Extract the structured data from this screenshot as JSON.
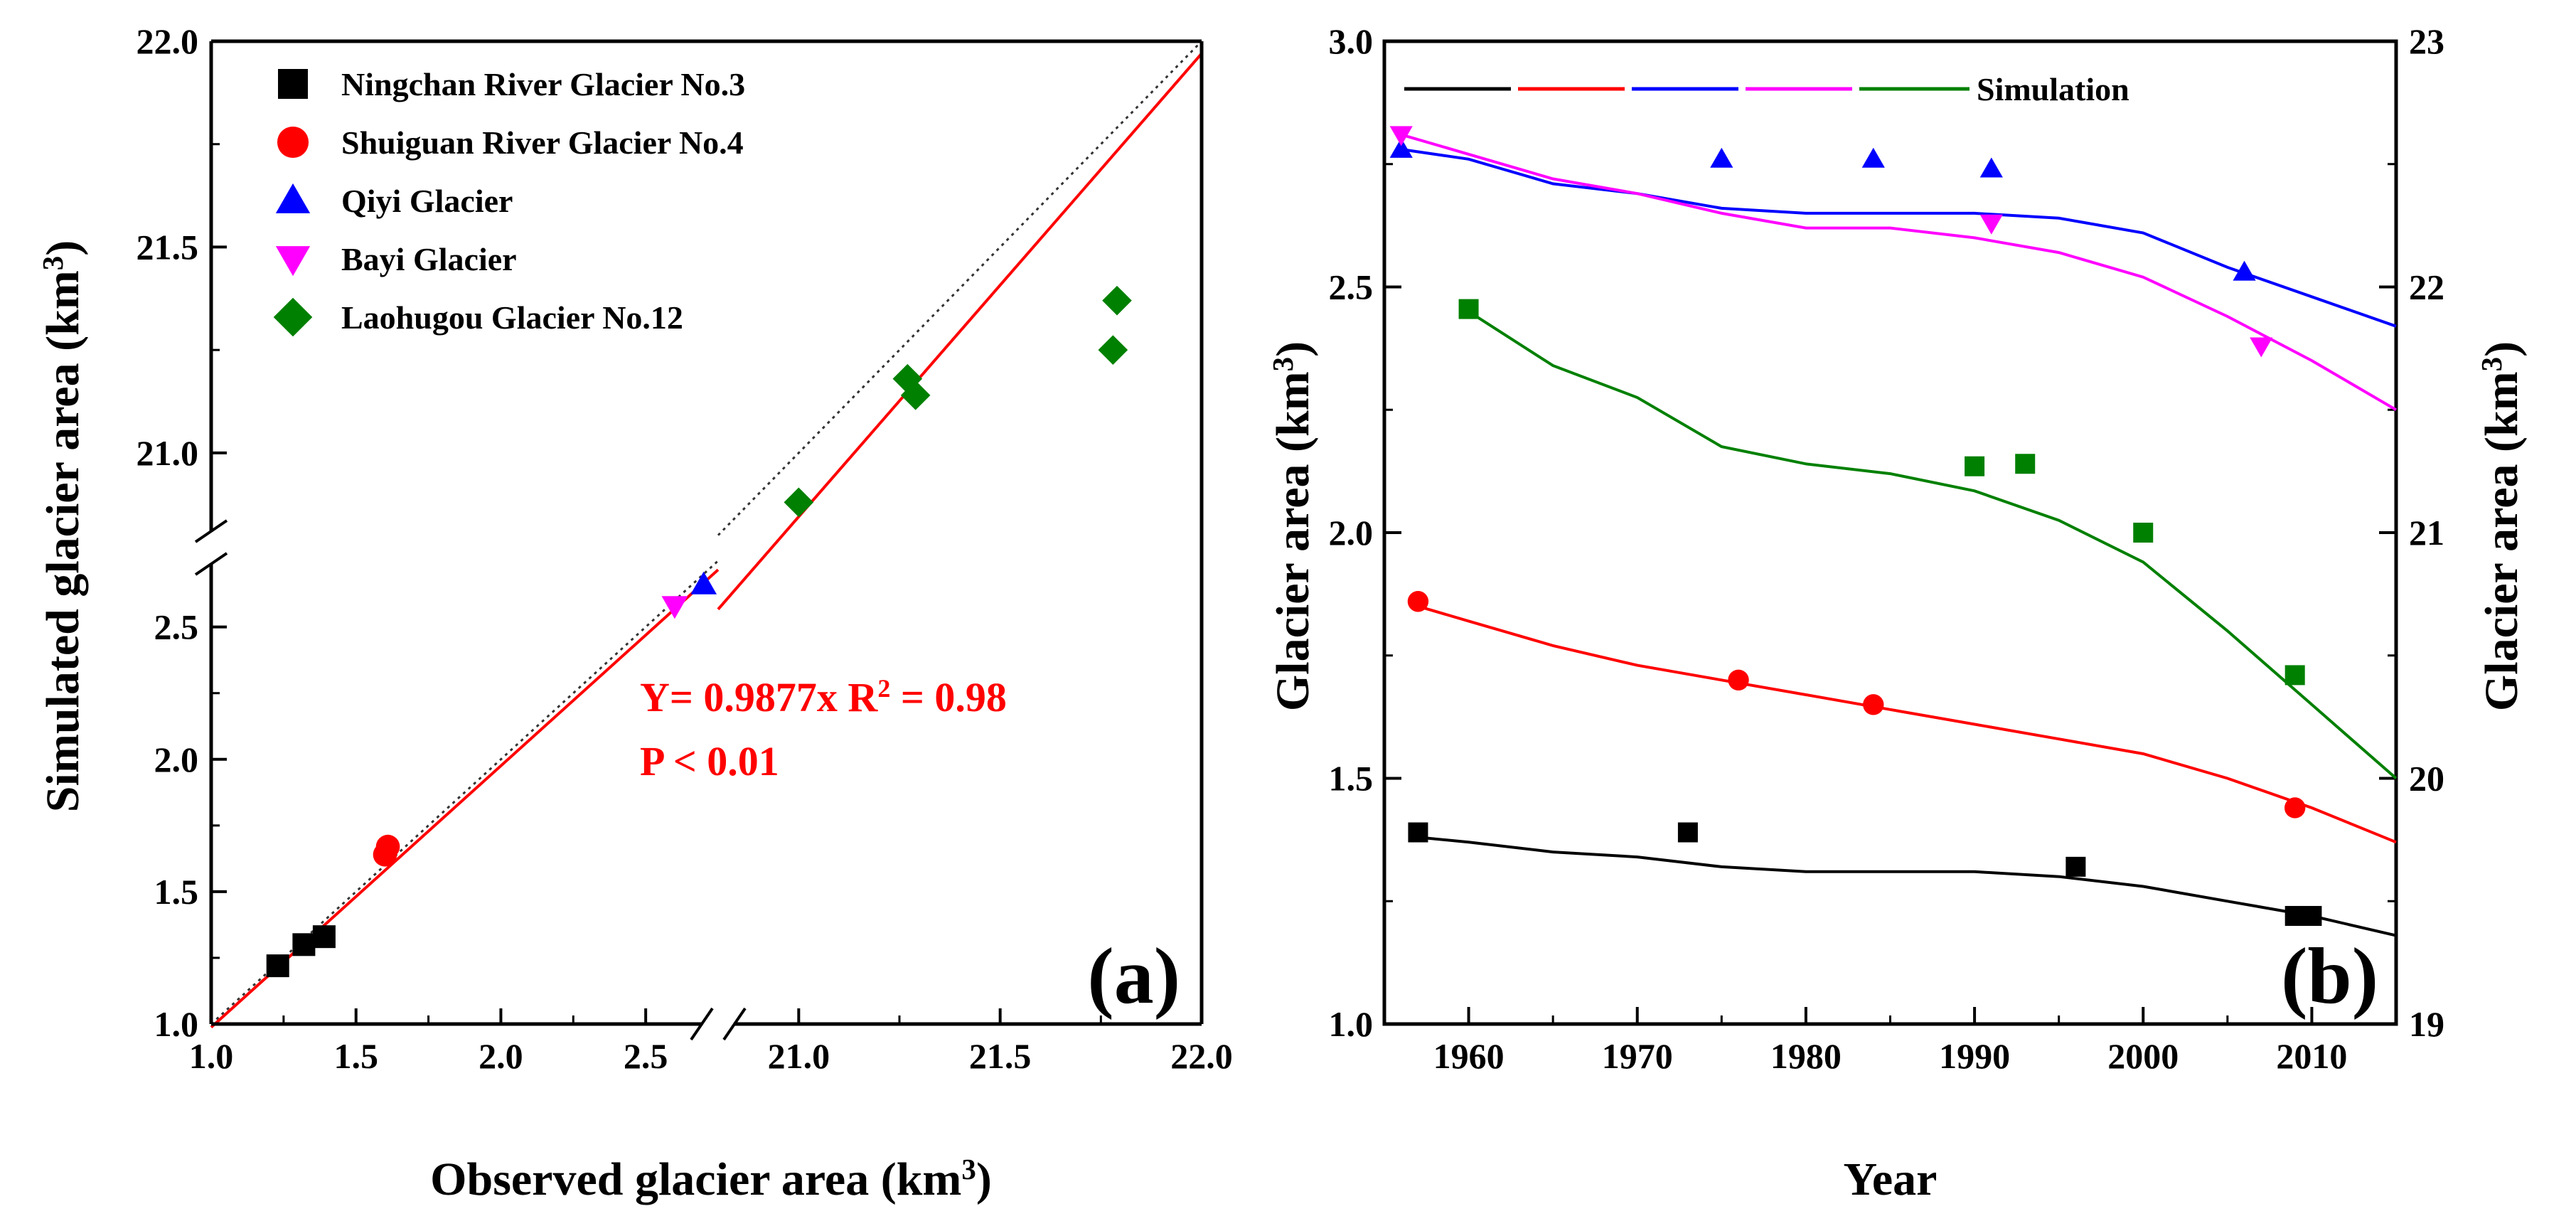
{
  "colors": {
    "ningchan": "#000000",
    "shuiguan": "#ff0000",
    "qiyi": "#0000ff",
    "bayi": "#ff00ff",
    "laohugou": "#008000",
    "identity": "#333333"
  },
  "chart_data": [
    {
      "type": "scatter",
      "panel_label": "(a)",
      "xlabel": "Observed glacier area (km",
      "ylabel": "Simulated glacier area (km",
      "unit_sup": "3",
      "axis_break": true,
      "x_lower_range": [
        1.0,
        2.7
      ],
      "x_upper_range": [
        20.9,
        22.0
      ],
      "y_lower_range": [
        1.0,
        2.75
      ],
      "y_upper_range": [
        20.8,
        22.0
      ],
      "x_ticks": [
        "1.0",
        "1.5",
        "2.0",
        "2.5",
        "21.0",
        "21.5",
        "22.0"
      ],
      "y_ticks": [
        "1.0",
        "1.5",
        "2.0",
        "2.5",
        "21.0",
        "21.5",
        "22.0"
      ],
      "legend": [
        {
          "name": "Ningchan River Glacier No.3",
          "marker": "square",
          "color": "#000000"
        },
        {
          "name": "Shuiguan River Glacier No.4",
          "marker": "circle",
          "color": "#ff0000"
        },
        {
          "name": "Qiyi  Glacier",
          "marker": "triangle-up",
          "color": "#0000ff"
        },
        {
          "name": "Bayi Glacier",
          "marker": "triangle-down",
          "color": "#ff00ff"
        },
        {
          "name": "Laohugou Glacier No.12",
          "marker": "diamond",
          "color": "#008000"
        }
      ],
      "fit_text": "Y= 0.9877x   R",
      "fit_sup": "2",
      "fit_text_tail": " = 0.98",
      "p_text": "P < 0.01",
      "fit_slope": 0.9877,
      "series": [
        {
          "name": "Ningchan River Glacier No.3",
          "points": [
            [
              1.23,
              1.22
            ],
            [
              1.32,
              1.3
            ],
            [
              1.39,
              1.33
            ]
          ]
        },
        {
          "name": "Shuiguan River Glacier No.4",
          "points": [
            [
              1.6,
              1.64
            ],
            [
              1.61,
              1.67
            ]
          ]
        },
        {
          "name": "Qiyi  Glacier",
          "points": [
            [
              2.7,
              2.66
            ]
          ]
        },
        {
          "name": "Bayi Glacier",
          "points": [
            [
              2.6,
              2.58
            ]
          ]
        },
        {
          "name": "Laohugou Glacier No.12",
          "points": [
            [
              21.0,
              20.88
            ],
            [
              21.27,
              21.18
            ],
            [
              21.29,
              21.14
            ],
            [
              21.78,
              21.25
            ],
            [
              21.79,
              21.37
            ]
          ]
        }
      ]
    },
    {
      "type": "line",
      "panel_label": "(b)",
      "xlabel": "Year",
      "ylabel_left": "Glacier area (km",
      "ylabel_right": "Glacier area (km",
      "unit_sup": "3",
      "xlim": [
        1955,
        2015
      ],
      "ylim_left": [
        1.0,
        3.0
      ],
      "ylim_right": [
        19,
        23
      ],
      "x_ticks": [
        "1960",
        "1970",
        "1980",
        "1990",
        "2000",
        "2010"
      ],
      "y_ticks_left": [
        "1.0",
        "1.5",
        "2.0",
        "2.5",
        "3.0"
      ],
      "y_ticks_right": [
        "19",
        "20",
        "21",
        "22",
        "23"
      ],
      "legend_label": "Simulation",
      "series": [
        {
          "name": "Ningchan River Glacier No.3",
          "axis": "left",
          "sim_x": [
            1957,
            1960,
            1965,
            1970,
            1975,
            1980,
            1985,
            1990,
            1995,
            2000,
            2005,
            2010,
            2015
          ],
          "sim_y": [
            1.38,
            1.37,
            1.35,
            1.34,
            1.32,
            1.31,
            1.31,
            1.31,
            1.3,
            1.28,
            1.25,
            1.22,
            1.18
          ],
          "obs_x": [
            1957,
            1973,
            1996,
            2009,
            2010
          ],
          "obs_y": [
            1.39,
            1.39,
            1.32,
            1.22,
            1.22
          ]
        },
        {
          "name": "Shuiguan River Glacier No.4",
          "axis": "left",
          "sim_x": [
            1957,
            1960,
            1965,
            1970,
            1975,
            1980,
            1985,
            1990,
            1995,
            2000,
            2005,
            2010,
            2015
          ],
          "sim_y": [
            1.85,
            1.82,
            1.77,
            1.73,
            1.7,
            1.67,
            1.64,
            1.61,
            1.58,
            1.55,
            1.5,
            1.44,
            1.37
          ],
          "obs_x": [
            1957,
            1976,
            1984,
            2009
          ],
          "obs_y": [
            1.86,
            1.7,
            1.65,
            1.44
          ]
        },
        {
          "name": "Qiyi  Glacier",
          "axis": "left",
          "sim_x": [
            1956,
            1960,
            1965,
            1970,
            1975,
            1980,
            1985,
            1990,
            1995,
            2000,
            2005,
            2010,
            2015
          ],
          "sim_y": [
            2.78,
            2.76,
            2.71,
            2.69,
            2.66,
            2.65,
            2.65,
            2.65,
            2.64,
            2.61,
            2.54,
            2.48,
            2.42
          ],
          "obs_x": [
            1956,
            1975,
            1984,
            1991,
            2006
          ],
          "obs_y": [
            2.78,
            2.76,
            2.76,
            2.74,
            2.53
          ]
        },
        {
          "name": "Bayi Glacier",
          "axis": "left",
          "sim_x": [
            1956,
            1960,
            1965,
            1970,
            1975,
            1980,
            1985,
            1990,
            1995,
            2000,
            2005,
            2010,
            2015
          ],
          "sim_y": [
            2.81,
            2.77,
            2.72,
            2.69,
            2.65,
            2.62,
            2.62,
            2.6,
            2.57,
            2.52,
            2.44,
            2.35,
            2.25
          ],
          "obs_x": [
            1956,
            1991,
            2007
          ],
          "obs_y": [
            2.81,
            2.63,
            2.38
          ]
        },
        {
          "name": "Laohugou Glacier No.12",
          "axis": "right",
          "sim_x": [
            1960,
            1965,
            1970,
            1975,
            1980,
            1985,
            1990,
            1995,
            2000,
            2005,
            2010,
            2015
          ],
          "sim_y": [
            21.9,
            21.68,
            21.55,
            21.35,
            21.28,
            21.24,
            21.17,
            21.05,
            20.88,
            20.6,
            20.3,
            20.0
          ],
          "obs_x": [
            1960,
            1990,
            1993,
            2000,
            2009
          ],
          "obs_y": [
            21.91,
            21.27,
            21.28,
            21.0,
            20.42
          ]
        }
      ]
    }
  ]
}
